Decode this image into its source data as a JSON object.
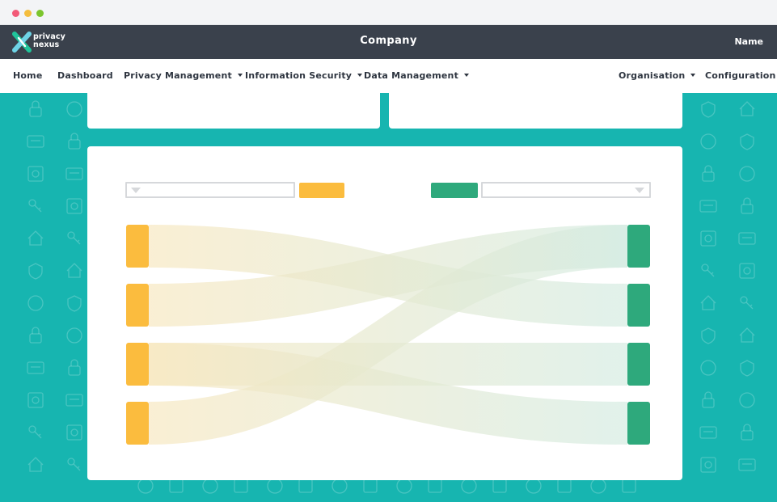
{
  "window": {
    "controls": [
      "close",
      "minimize",
      "maximize"
    ]
  },
  "header": {
    "logo_line1": "privacy",
    "logo_line2": "nexus",
    "company": "Company",
    "user": "Name",
    "colors": {
      "bar": "#3a414c",
      "logo_green": "#21c49b",
      "logo_blue": "#6ed3e6"
    }
  },
  "nav": {
    "items": [
      {
        "label": "Home",
        "dropdown": false
      },
      {
        "label": "Dashboard",
        "dropdown": false
      },
      {
        "label": "Privacy Management",
        "dropdown": true
      },
      {
        "label": "Information Security",
        "dropdown": true
      },
      {
        "label": "Data Management",
        "dropdown": true
      },
      {
        "label": "Organisation",
        "dropdown": true
      },
      {
        "label": "Configuration",
        "dropdown": false
      }
    ]
  },
  "content": {
    "background": "#17b5b0",
    "left_select": {
      "value": "",
      "icon": "chevron-down-icon"
    },
    "right_select": {
      "value": "",
      "icon": "chevron-down-icon"
    },
    "left_button": {
      "label": "",
      "color": "#fbbc3e"
    },
    "right_button": {
      "label": "",
      "color": "#2ea97c"
    }
  },
  "chart_data": {
    "type": "sankey",
    "source_nodes": [
      "",
      "",
      "",
      ""
    ],
    "target_nodes": [
      "",
      "",
      "",
      ""
    ],
    "links": [
      {
        "source": 0,
        "target": 1,
        "value": 1
      },
      {
        "source": 1,
        "target": 0,
        "value": 1
      },
      {
        "source": 2,
        "target": 2,
        "value": 1
      },
      {
        "source": 2,
        "target": 3,
        "value": 1
      },
      {
        "source": 3,
        "target": 0,
        "value": 1
      }
    ],
    "colors": {
      "source": "#fbbc3e",
      "target": "#2ea97c",
      "flow_start": "#f7e7bf",
      "flow_end": "#d3ebe1"
    }
  }
}
